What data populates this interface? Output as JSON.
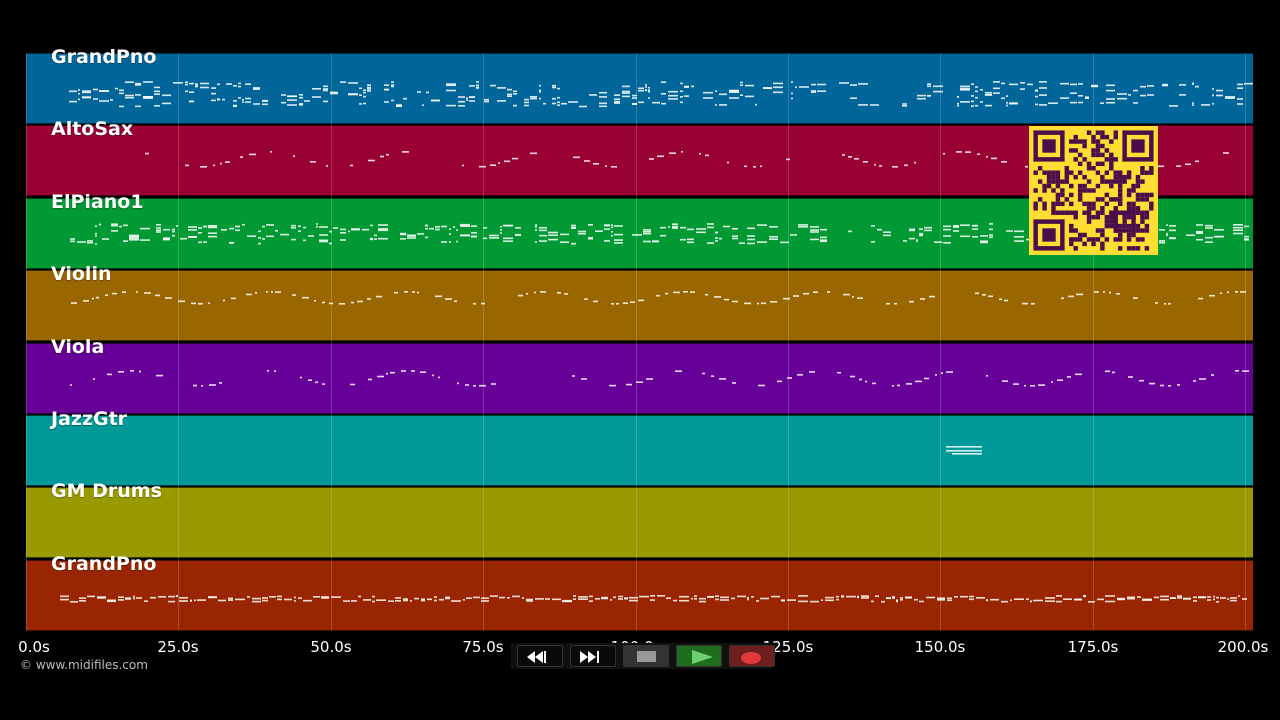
{
  "tracks": [
    {
      "name": "GrandPno",
      "color": "#006699"
    },
    {
      "name": "AltoSax",
      "color": "#990033"
    },
    {
      "name": "ElPiano1",
      "color": "#009933"
    },
    {
      "name": "Violin",
      "color": "#996600"
    },
    {
      "name": "Viola",
      "color": "#660099"
    },
    {
      "name": "JazzGtr",
      "color": "#009999"
    },
    {
      "name": "GM Drums",
      "color": "#999900"
    },
    {
      "name": "GrandPno",
      "color": "#992600"
    }
  ],
  "timeline": {
    "ticks": [
      "0.0s",
      "25.0s",
      "50.0s",
      "75.0s",
      "100.0s",
      "125.0s",
      "150.0s",
      "175.0s",
      "200.0s"
    ]
  },
  "copyright": "© www.midifiles.com",
  "transport": {
    "rewind_icon": "rewind-icon",
    "fast_forward_icon": "fast-forward-icon",
    "stop_icon": "stop-icon",
    "play_icon": "play-icon",
    "record_icon": "record-icon",
    "play_color": "#1f6e1f",
    "record_color": "#6e1f1f"
  },
  "qr_colors": {
    "background": "#ffdd33",
    "foreground": "#4a0f4a"
  }
}
